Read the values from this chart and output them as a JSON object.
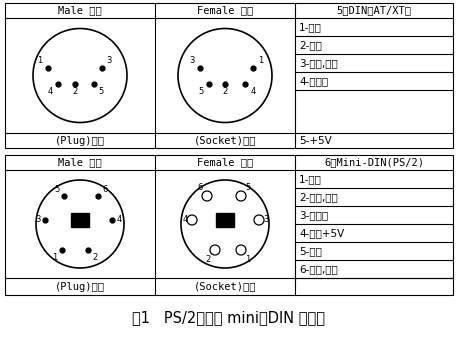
{
  "title": "图1   PS/2接口的 mini－DIN 连接器",
  "bg_color": "#ffffff",
  "lc": "#000000",
  "section1": {
    "h_col1": "Male 公的",
    "h_col2": "Female 母的",
    "h_col3": "5脚DIN（AT/XT）",
    "f_col1": "(Plug)插头",
    "f_col2": "(Socket)插座",
    "pins": [
      "1-时钟",
      "2-数据",
      "3-未用,保留",
      "4-电源地",
      "5-+5V"
    ]
  },
  "section2": {
    "h_col1": "Male 公的",
    "h_col2": "Female 母的",
    "h_col3": "6脚Mini-DIN(PS/2)",
    "f_col1": "(Plug)插头",
    "f_col2": "(Socket)插座",
    "pins": [
      "1-数据",
      "2-未用,保留",
      "3-电源地",
      "4-电源+5V",
      "5-时钟",
      "6-未用,保留"
    ]
  }
}
